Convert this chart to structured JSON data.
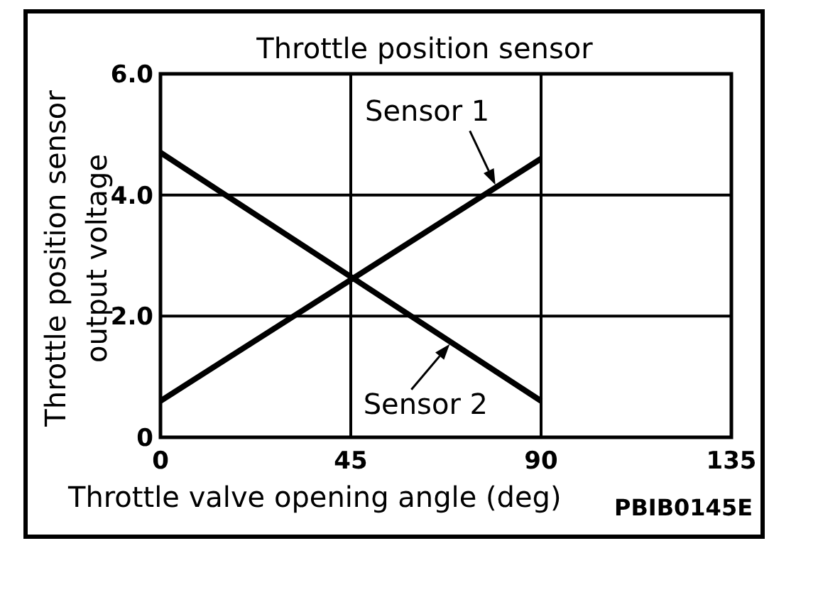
{
  "chart_data": {
    "type": "line",
    "title": "Throttle position sensor",
    "xlabel": "Throttle valve opening angle (deg)",
    "ylabel": "Throttle position sensor\noutput voltage",
    "x": [
      0,
      90
    ],
    "series": [
      {
        "name": "Sensor 1",
        "color": "#000000",
        "values": [
          0.6,
          4.6
        ]
      },
      {
        "name": "Sensor 2",
        "color": "#000000",
        "values": [
          4.7,
          0.6
        ]
      }
    ],
    "xlim": [
      0,
      135
    ],
    "ylim": [
      0,
      6
    ],
    "xticks": [
      0,
      45,
      90,
      135
    ],
    "yticks": [
      0,
      {
        "value": 2,
        "label": "2.0"
      },
      {
        "value": 4,
        "label": "4.0"
      },
      {
        "value": 6,
        "label": "6.0"
      }
    ],
    "grid": true,
    "marker": "none",
    "line_style": "solid",
    "annotations": [
      "PBIB0145E"
    ]
  }
}
